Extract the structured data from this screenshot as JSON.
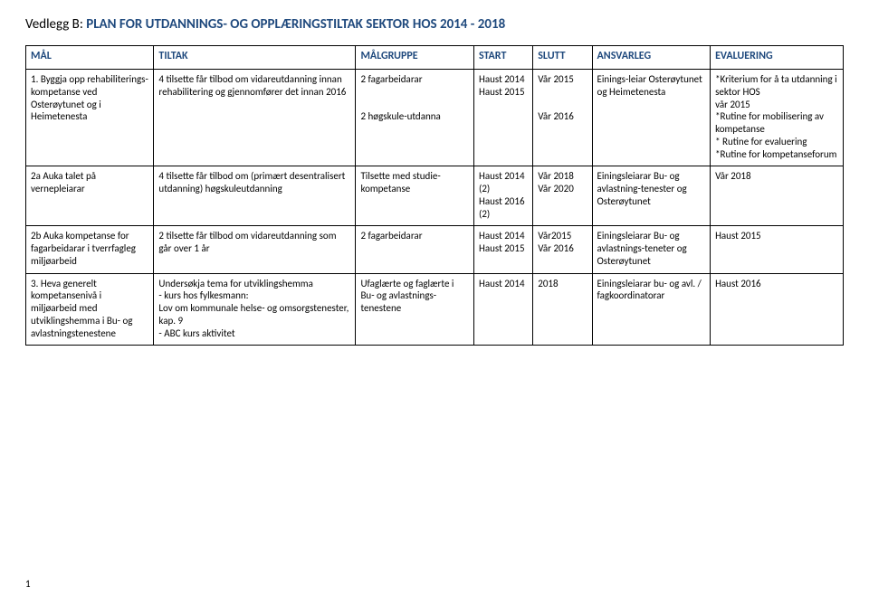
{
  "title": {
    "prefix": "Vedlegg B: ",
    "main": "PLAN FOR  UTDANNINGS- OG OPPLÆRINGSTILTAK SEKTOR HOS 2014 - 2018"
  },
  "headers": {
    "mal": "MÅL",
    "tiltak": "TILTAK",
    "malgruppe": "MÅLGRUPPE",
    "start": "START",
    "slutt": "SLUTT",
    "ansvarleg": "ANSVARLEG",
    "evaluering": "EVALUERING"
  },
  "rows": [
    {
      "mal": "1. Byggja opp rehabiliterings-kompetanse ved Osterøytunet og i Heimetenesta",
      "tiltak": "4 tilsette får tilbod om vidareutdanning innan rehabilitering og gjennomfører det innan 2016",
      "malgruppe": "2 fagarbeidarar\n\n2 høgskule-utdanna",
      "start": "Haust 2014\nHaust 2015",
      "slutt": "Vår 2015\n\nVår 2016",
      "ansvarleg": "Einings-leiar Osterøytunet og Heimetenesta",
      "evaluering": "*Kriterium for å ta utdanning i sektor HOS\nvår 2015\n*Rutine for mobilisering av kompetanse\n* Rutine for evaluering\n*Rutine for kompetanseforum"
    },
    {
      "mal": "2a Auka talet på vernepleiarar",
      "tiltak": "4 tilsette får tilbod om (primært desentralisert utdanning) høgskuleutdanning",
      "malgruppe": "Tilsette med studie-kompetanse",
      "start": "Haust 2014 (2)\nHaust 2016 (2)",
      "slutt": "Vår 2018\nVår 2020",
      "ansvarleg": "Einingsleiarar Bu- og avlastning-tenester og Osterøytunet",
      "evaluering": "Vår 2018"
    },
    {
      "mal": "2b Auka kompetanse for fagarbeidarar i tverrfagleg miljøarbeid",
      "tiltak": "2 tilsette får tilbod om vidareutdanning som går over 1 år",
      "malgruppe": "2 fagarbeidarar",
      "start": "Haust 2014\nHaust 2015",
      "slutt": "Vår2015\nVår 2016",
      "ansvarleg": "Einingsleiarar Bu- og avlastnings-teneter og Osterøytunet",
      "evaluering": "Haust 2015"
    },
    {
      "mal": "3. Heva generelt kompetansenivå i miljøarbeid med utviklingshemma i Bu- og avlastningstenestene",
      "tiltak": "Undersøkja tema for utviklingshemma\n- kurs hos fylkesmann:\nLov om kommunale helse- og omsorgstenester, kap. 9\n- ABC kurs aktivitet",
      "malgruppe": "Ufaglærte og faglærte i Bu- og avlastnings-tenestene",
      "start": "Haust 2014",
      "slutt": "2018",
      "ansvarleg": "Einingsleiarar bu- og avl. / fagkoordinatorar",
      "evaluering": "Haust 2016"
    }
  ],
  "page_number": "1"
}
